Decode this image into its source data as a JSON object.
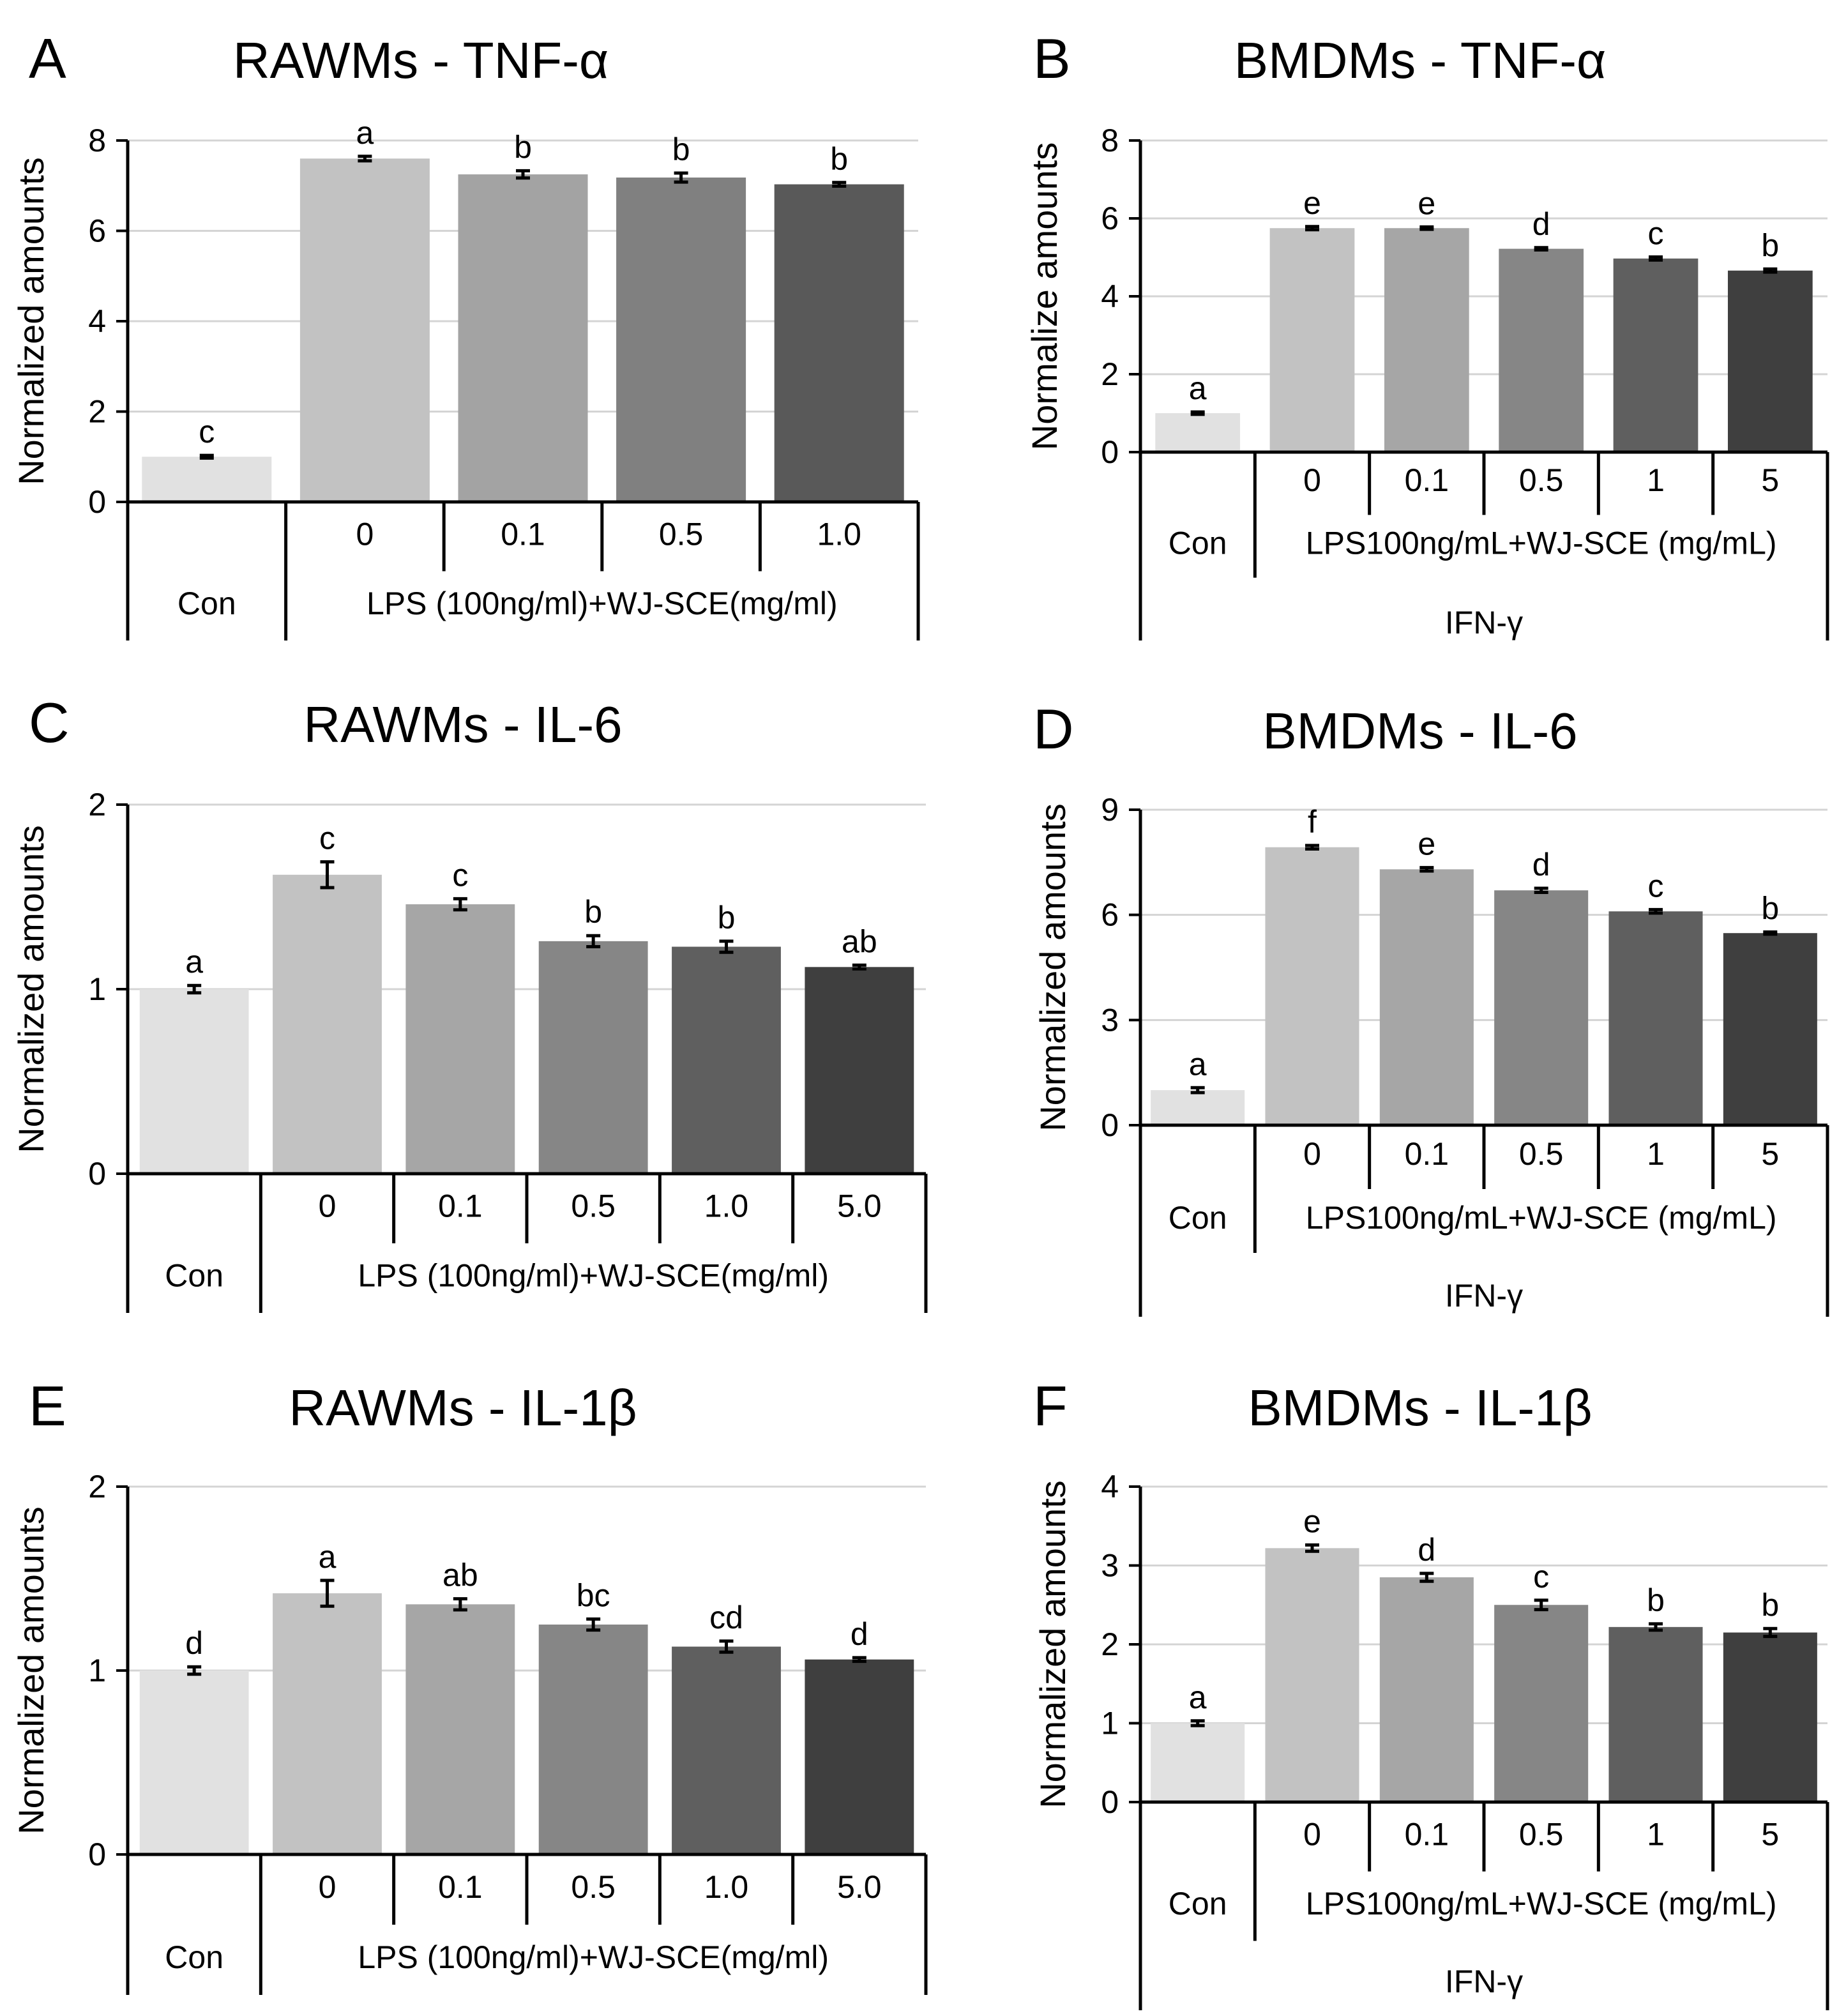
{
  "chart_data": [
    {
      "panel": "A",
      "type": "bar",
      "title": "RAWMs - TNF-α",
      "ylabel": "Normalized amounts",
      "ylim": [
        0,
        8
      ],
      "yticks": [
        0,
        2,
        4,
        6,
        8
      ],
      "ytick_labels": [
        "0",
        "2",
        "4",
        "6",
        "8"
      ],
      "gridlines": true,
      "values": [
        1.0,
        7.6,
        7.25,
        7.18,
        7.03
      ],
      "errors": [
        0.03,
        0.05,
        0.08,
        0.1,
        0.04
      ],
      "sig_letters": [
        "c",
        "a",
        "b",
        "b",
        "b"
      ],
      "colors": [
        "#e1e1e1",
        "#c2c2c2",
        "#a3a3a3",
        "#808080",
        "#595959"
      ],
      "concentration_labels": [
        "0",
        "0.1",
        "0.5",
        "1.0"
      ],
      "control_label": "Con",
      "treatment_label": "LPS (100ng/ml)+WJ-SCE(mg/ml)",
      "outer_label": null
    },
    {
      "panel": "B",
      "type": "bar",
      "title": "BMDMs - TNF-α",
      "ylabel": "Normalize amounts",
      "ylim": [
        0,
        8
      ],
      "yticks": [
        0,
        2,
        4,
        6,
        8
      ],
      "ytick_labels": [
        "0",
        "2",
        "4",
        "6",
        "8"
      ],
      "gridlines": true,
      "values": [
        1.0,
        5.75,
        5.75,
        5.22,
        4.97,
        4.66
      ],
      "errors": [
        0.03,
        0.04,
        0.03,
        0.03,
        0.04,
        0.04
      ],
      "sig_letters": [
        "a",
        "e",
        "e",
        "d",
        "c",
        "b"
      ],
      "colors": [
        "#e1e1e1",
        "#c2c2c2",
        "#a6a6a6",
        "#868686",
        "#5f5f5f",
        "#3f3f3f"
      ],
      "concentration_labels": [
        "0",
        "0.1",
        "0.5",
        "1",
        "5"
      ],
      "control_label": "Con",
      "treatment_label": "LPS100ng/mL+WJ-SCE (mg/mL)",
      "outer_label": "IFN-γ"
    },
    {
      "panel": "C",
      "type": "bar",
      "title": "RAWMs - IL-6",
      "ylabel": "Normalized amounts",
      "ylim": [
        0,
        2
      ],
      "yticks": [
        0,
        1,
        2
      ],
      "ytick_labels": [
        "0",
        "1",
        "2"
      ],
      "gridlines": true,
      "values": [
        1.0,
        1.62,
        1.46,
        1.26,
        1.23,
        1.12
      ],
      "errors": [
        0.02,
        0.07,
        0.03,
        0.03,
        0.03,
        0.01
      ],
      "sig_letters": [
        "a",
        "c",
        "c",
        "b",
        "b",
        "ab"
      ],
      "colors": [
        "#e1e1e1",
        "#c2c2c2",
        "#a6a6a6",
        "#868686",
        "#5f5f5f",
        "#3f3f3f"
      ],
      "concentration_labels": [
        "0",
        "0.1",
        "0.5",
        "1.0",
        "5.0"
      ],
      "control_label": "Con",
      "treatment_label": "LPS (100ng/ml)+WJ-SCE(mg/ml)",
      "outer_label": null
    },
    {
      "panel": "D",
      "type": "bar",
      "title": "BMDMs - IL-6",
      "ylabel": "Normalized amounts",
      "ylim": [
        0,
        9
      ],
      "yticks": [
        0,
        3,
        6,
        9
      ],
      "ytick_labels": [
        "0",
        "3",
        "6",
        "9"
      ],
      "gridlines": true,
      "values": [
        1.0,
        7.93,
        7.3,
        6.7,
        6.1,
        5.48
      ],
      "errors": [
        0.07,
        0.05,
        0.05,
        0.06,
        0.05,
        0.03
      ],
      "sig_letters": [
        "a",
        "f",
        "e",
        "d",
        "c",
        "b"
      ],
      "colors": [
        "#e1e1e1",
        "#c2c2c2",
        "#a6a6a6",
        "#868686",
        "#5f5f5f",
        "#3f3f3f"
      ],
      "concentration_labels": [
        "0",
        "0.1",
        "0.5",
        "1",
        "5"
      ],
      "control_label": "Con",
      "treatment_label": "LPS100ng/mL+WJ-SCE (mg/mL)",
      "outer_label": "IFN-γ"
    },
    {
      "panel": "E",
      "type": "bar",
      "title": "RAWMs - IL-1β",
      "ylabel": "Normalized amounts",
      "ylim": [
        0,
        2
      ],
      "yticks": [
        0,
        1,
        2
      ],
      "ytick_labels": [
        "0",
        "1",
        "2"
      ],
      "gridlines": true,
      "values": [
        1.0,
        1.42,
        1.36,
        1.25,
        1.13,
        1.06
      ],
      "errors": [
        0.02,
        0.07,
        0.03,
        0.03,
        0.03,
        0.01
      ],
      "sig_letters": [
        "d",
        "a",
        "ab",
        "bc",
        "cd",
        "d"
      ],
      "colors": [
        "#e1e1e1",
        "#c2c2c2",
        "#a6a6a6",
        "#868686",
        "#5f5f5f",
        "#3f3f3f"
      ],
      "concentration_labels": [
        "0",
        "0.1",
        "0.5",
        "1.0",
        "5.0"
      ],
      "control_label": "Con",
      "treatment_label": "LPS (100ng/ml)+WJ-SCE(mg/ml)",
      "outer_label": null
    },
    {
      "panel": "F",
      "type": "bar",
      "title": "BMDMs - IL-1β",
      "ylabel": "Normalized amounts",
      "ylim": [
        0,
        4
      ],
      "yticks": [
        0,
        1,
        2,
        3,
        4
      ],
      "ytick_labels": [
        "0",
        "1",
        "2",
        "3",
        "4"
      ],
      "gridlines": true,
      "values": [
        1.0,
        3.22,
        2.85,
        2.5,
        2.22,
        2.15
      ],
      "errors": [
        0.03,
        0.04,
        0.05,
        0.06,
        0.04,
        0.05
      ],
      "sig_letters": [
        "a",
        "e",
        "d",
        "c",
        "b",
        "b"
      ],
      "colors": [
        "#e1e1e1",
        "#c2c2c2",
        "#a6a6a6",
        "#868686",
        "#5f5f5f",
        "#3f3f3f"
      ],
      "concentration_labels": [
        "0",
        "0.1",
        "0.5",
        "1",
        "5"
      ],
      "control_label": "Con",
      "treatment_label": "LPS100ng/mL+WJ-SCE (mg/mL)",
      "outer_label": "IFN-γ"
    }
  ]
}
